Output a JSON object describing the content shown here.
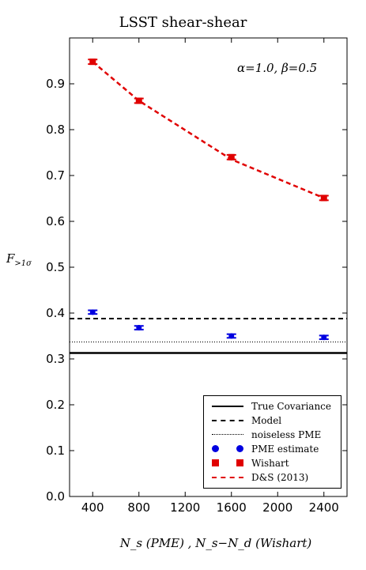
{
  "chart_data": {
    "type": "line",
    "title": "LSST shear-shear",
    "xlabel": "N_s (PME) , N_s−N_d (Wishart)",
    "ylabel": "F_>1σ",
    "annotation": "α=1.0, β=0.5",
    "xlim": [
      200,
      2600
    ],
    "ylim": [
      0.0,
      1.0
    ],
    "xticks": [
      400,
      800,
      1200,
      1600,
      2000,
      2400
    ],
    "yticks": [
      0.0,
      0.1,
      0.2,
      0.3,
      0.4,
      0.5,
      0.6,
      0.7,
      0.8,
      0.9
    ],
    "grid": false,
    "legend_position": "lower-right",
    "series": [
      {
        "name": "True Covariance",
        "style": "solid",
        "color": "#000000",
        "x": [
          200,
          2600
        ],
        "y": [
          0.313,
          0.313
        ]
      },
      {
        "name": "Model",
        "style": "dashed",
        "color": "#000000",
        "x": [
          200,
          2600
        ],
        "y": [
          0.388,
          0.388
        ]
      },
      {
        "name": "noiseless PME",
        "style": "dotted",
        "color": "#000000",
        "x": [
          200,
          2600
        ],
        "y": [
          0.337,
          0.337
        ]
      },
      {
        "name": "PME estimate",
        "style": "circle",
        "color": "#0000e0",
        "x": [
          400,
          800,
          1600,
          2400
        ],
        "y": [
          0.402,
          0.368,
          0.35,
          0.347
        ],
        "err": [
          0.004,
          0.004,
          0.004,
          0.004
        ]
      },
      {
        "name": "Wishart",
        "style": "square",
        "color": "#e00000",
        "x": [
          400,
          800,
          1600,
          2400
        ],
        "y": [
          0.948,
          0.863,
          0.74,
          0.651
        ],
        "err": [
          0.005,
          0.005,
          0.005,
          0.005
        ]
      },
      {
        "name": "D&S (2013)",
        "style": "reddash",
        "color": "#e00000",
        "x": [
          400,
          800,
          1600,
          2400
        ],
        "y": [
          0.948,
          0.863,
          0.735,
          0.651
        ]
      }
    ]
  }
}
